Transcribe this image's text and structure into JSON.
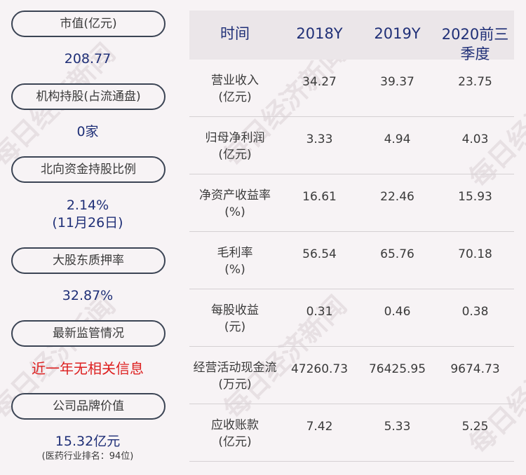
{
  "left": {
    "items": [
      {
        "label": "市值(亿元)",
        "value": "208.77"
      },
      {
        "label": "机构持股(占流通盘)",
        "value": "0家"
      },
      {
        "label": "北向资金持股比例",
        "value": "2.14%",
        "sub": "(11月26日)"
      },
      {
        "label": "大股东质押率",
        "value": "32.87%"
      },
      {
        "label": "最新监管情况",
        "value": "近一年无相关信息"
      },
      {
        "label": "公司品牌价值",
        "value": "15.32亿元",
        "note": "(医药行业排名：94位)"
      }
    ]
  },
  "table": {
    "headers": [
      "时间",
      "2018Y",
      "2019Y",
      "2020前三季度"
    ],
    "rows": [
      {
        "label1": "营业收入",
        "label2": "(亿元)",
        "v2018": "34.27",
        "v2019": "39.37",
        "v2020": "23.75"
      },
      {
        "label1": "归母净利润",
        "label2": "(亿元)",
        "v2018": "3.33",
        "v2019": "4.94",
        "v2020": "4.03"
      },
      {
        "label1": "净资产收益率",
        "label2": "(%)",
        "v2018": "16.61",
        "v2019": "22.46",
        "v2020": "15.93"
      },
      {
        "label1": "毛利率",
        "label2": "(%)",
        "v2018": "56.54",
        "v2019": "65.76",
        "v2020": "70.18"
      },
      {
        "label1": "每股收益",
        "label2": "(元)",
        "v2018": "0.31",
        "v2019": "0.46",
        "v2020": "0.38"
      },
      {
        "label1": "经营活动现金流",
        "label2": "(万元)",
        "v2018": "47260.73",
        "v2019": "76425.95",
        "v2020": "9674.73"
      },
      {
        "label1": "应收账款",
        "label2": "(亿元)",
        "v2018": "7.42",
        "v2019": "5.33",
        "v2020": "5.25"
      }
    ]
  },
  "watermark": "每日经济新闻",
  "colors": {
    "background": "#f7f3f5",
    "accent": "#1f2f77",
    "alert": "#dd1f1f",
    "header_bg": "#ebe6e9"
  }
}
